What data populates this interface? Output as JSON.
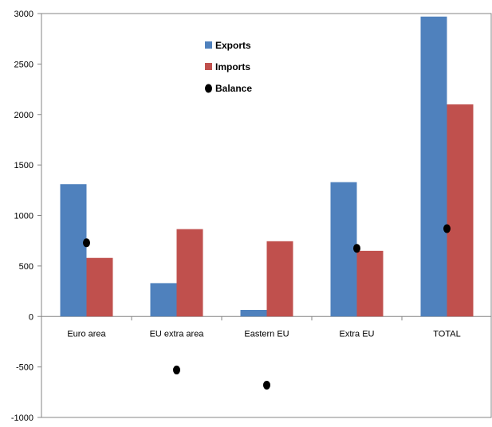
{
  "chart_data": {
    "type": "bar",
    "categories": [
      "Euro area",
      "EU extra area",
      "Eastern EU",
      "Extra EU",
      "TOTAL"
    ],
    "series": [
      {
        "name": "Exports",
        "kind": "bar",
        "color": "#4F81BD",
        "values": [
          1310,
          330,
          65,
          1330,
          2970
        ]
      },
      {
        "name": "Imports",
        "kind": "bar",
        "color": "#C0504D",
        "values": [
          580,
          865,
          745,
          650,
          2100
        ]
      },
      {
        "name": "Balance",
        "kind": "marker",
        "color": "#000000",
        "values": [
          730,
          -530,
          -680,
          675,
          870
        ]
      }
    ],
    "yticks": [
      "3000",
      "2500",
      "2000",
      "1500",
      "1000",
      "500",
      "0",
      "-500",
      "-1000"
    ],
    "ylim": [
      -1000,
      3000
    ],
    "grid": false,
    "legend": "top-center"
  }
}
